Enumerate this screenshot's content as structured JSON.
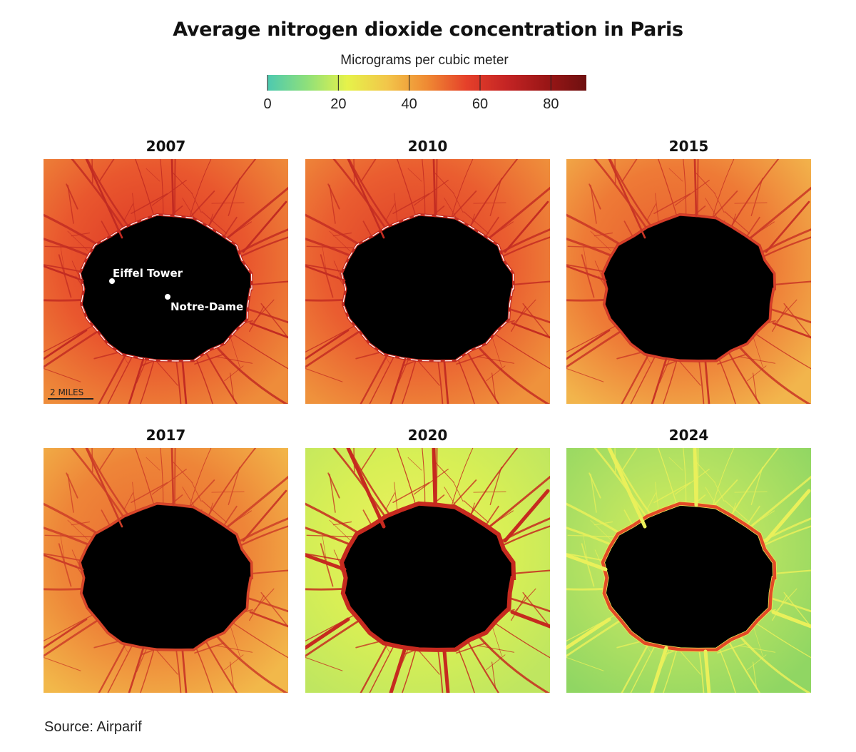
{
  "title": "Average nitrogen dioxide concentration in Paris",
  "legend": {
    "title": "Micrograms per cubic meter",
    "ticks": [
      "0",
      "20",
      "40",
      "60",
      "80"
    ],
    "tick_values": [
      0,
      20,
      40,
      60,
      80
    ],
    "range": [
      0,
      90
    ],
    "stops": [
      "#4dc9b0",
      "#8fe07a",
      "#e6f24a",
      "#f2c64a",
      "#ef8a33",
      "#e5402a",
      "#c42424",
      "#9a1616",
      "#6e1010"
    ]
  },
  "panels": [
    {
      "year": "2007",
      "base": "#e9572e",
      "edge": "#ee8c3a",
      "core": "#db3425",
      "road": "#c22b22",
      "highway": "#ffffff"
    },
    {
      "year": "2010",
      "base": "#ea5d30",
      "edge": "#ef923c",
      "core": "#dc3b27",
      "road": "#c42d22",
      "highway": "#ffffff"
    },
    {
      "year": "2015",
      "base": "#ee7a36",
      "edge": "#f2b54c",
      "core": "#e75b2e",
      "road": "#c93525",
      "highway": "#d7402a"
    },
    {
      "year": "2017",
      "base": "#ee8538",
      "edge": "#f2b84a",
      "core": "#ea6a32",
      "road": "#cc3d27",
      "highway": "#d9472a"
    },
    {
      "year": "2020",
      "base": "#d8ef55",
      "edge": "#bfe660",
      "core": "#f0f060",
      "road": "#c62a1f",
      "highway": "#c62a1f"
    },
    {
      "year": "2024",
      "base": "#b2e162",
      "edge": "#90d663",
      "core": "#dbef58",
      "road": "#eaf05a",
      "highway": "#e24a27"
    }
  ],
  "annotations": {
    "eiffel": "Eiffel Tower",
    "notre_dame": "Notre-Dame",
    "scale": "2 MILES"
  },
  "source": "Source: Airparif"
}
